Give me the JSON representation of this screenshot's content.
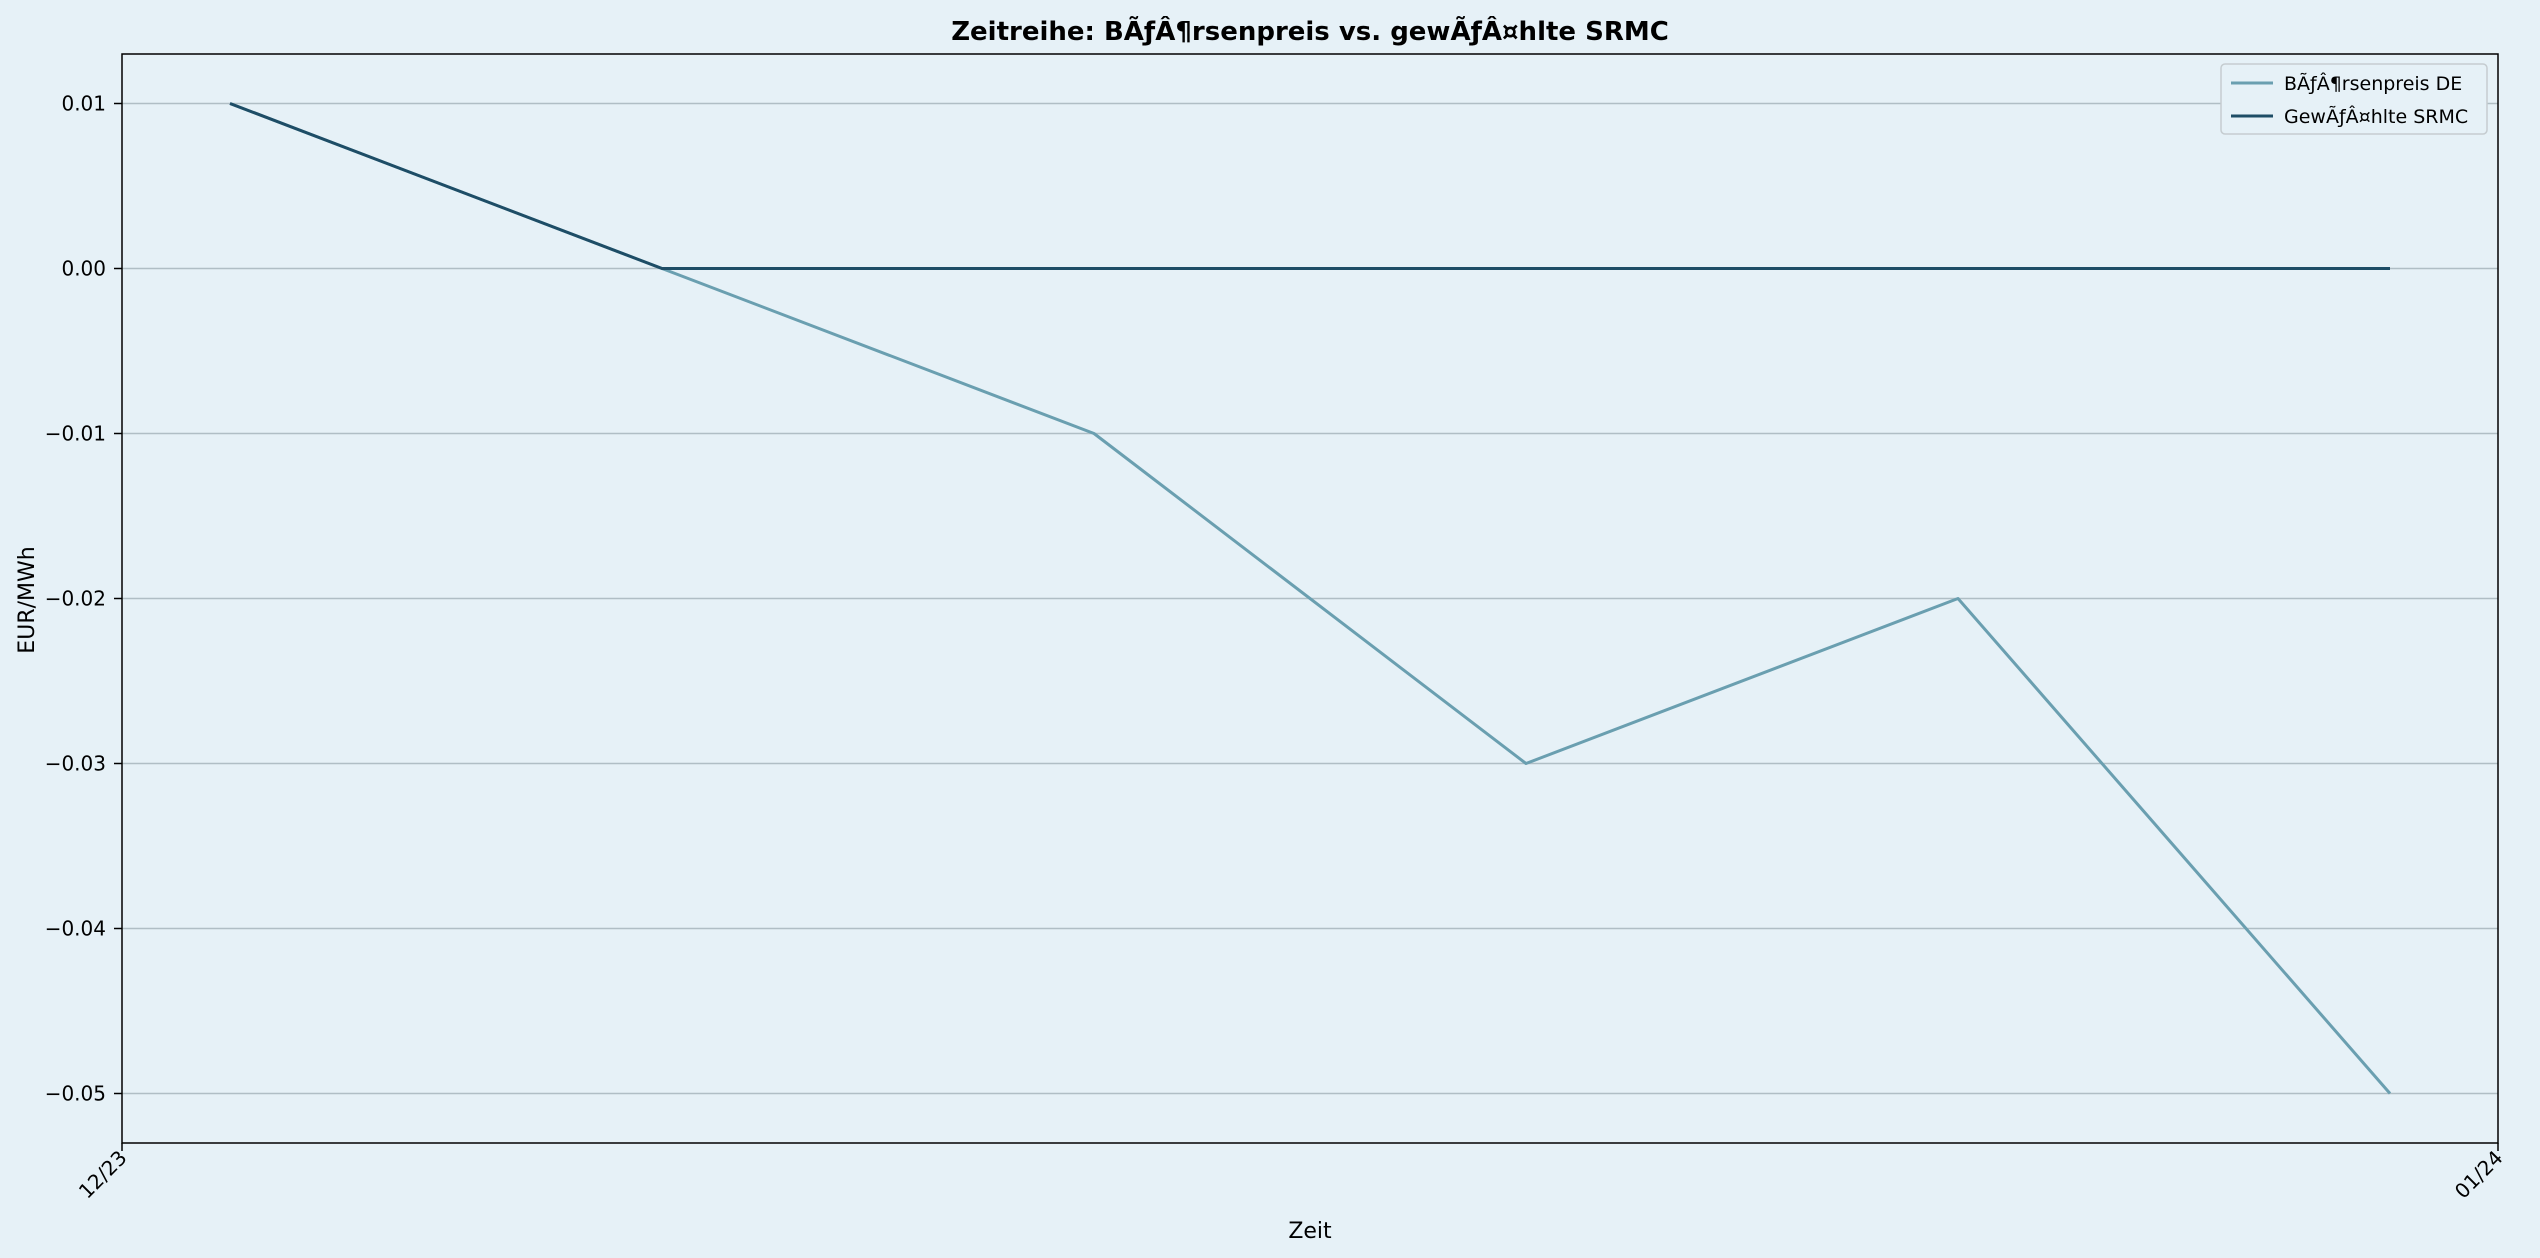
{
  "chart_data": {
    "type": "line",
    "title": "Zeitreihe: BÃƒÂ¶rsenpreis vs. gewÃƒÂ¤hlte SRMC",
    "xlabel": "Zeit",
    "ylabel": "EUR/MWh",
    "x_tick_labels": [
      "12/23",
      "01/24"
    ],
    "y_ticks": [
      0.01,
      0.0,
      -0.01,
      -0.02,
      -0.03,
      -0.04,
      -0.05
    ],
    "y_tick_labels": [
      "0.01",
      "0.00",
      "−0.01",
      "−0.02",
      "−0.03",
      "−0.04",
      "−0.05"
    ],
    "ylim": [
      -0.053,
      0.013
    ],
    "grid": "horizontal",
    "legend_position": "top-right",
    "series": [
      {
        "name": "BÃƒÂ¶rsenpreis DE",
        "color": "#6a9fb0",
        "values": [
          0.01,
          0.0,
          -0.01,
          -0.03,
          -0.02,
          -0.05
        ]
      },
      {
        "name": "GewÃƒÂ¤hlte SRMC",
        "color": "#1e4d66",
        "values": [
          0.01,
          0.0,
          0.0,
          0.0,
          0.0,
          0.0
        ]
      }
    ]
  }
}
